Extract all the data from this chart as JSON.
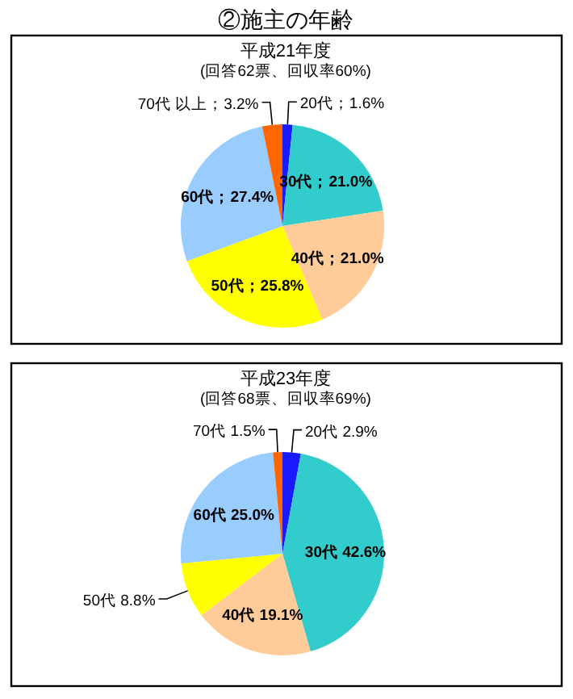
{
  "chart_data": [
    {
      "type": "pie",
      "title": "②施主の年齢",
      "subtitle": "平成21年度",
      "annotations": [
        "(回答62票、回収率60%)"
      ],
      "categories": [
        "20代；1.6%",
        "30代；21.0%",
        "40代；21.0%",
        "50代；25.8%",
        "60代；27.4%",
        "70代 以上；3.2%"
      ],
      "values": [
        1.6,
        21.0,
        21.0,
        25.8,
        27.4,
        3.2
      ],
      "colors": [
        "#1a1aff",
        "#33cccc",
        "#ffcc99",
        "#ffff00",
        "#99ccff",
        "#ff6600"
      ]
    },
    {
      "type": "pie",
      "subtitle": "平成23年度",
      "annotations": [
        "(回答68票、回収率69%)"
      ],
      "categories": [
        "20代 2.9%",
        "30代 42.6%",
        "40代 19.1%",
        "50代 8.8%",
        "60代 25.0%",
        "70代 1.5%"
      ],
      "values": [
        2.9,
        42.6,
        19.1,
        8.8,
        25.0,
        1.5
      ],
      "colors": [
        "#1a1aff",
        "#33cccc",
        "#ffcc99",
        "#ffff00",
        "#99ccff",
        "#ff6600"
      ]
    }
  ]
}
